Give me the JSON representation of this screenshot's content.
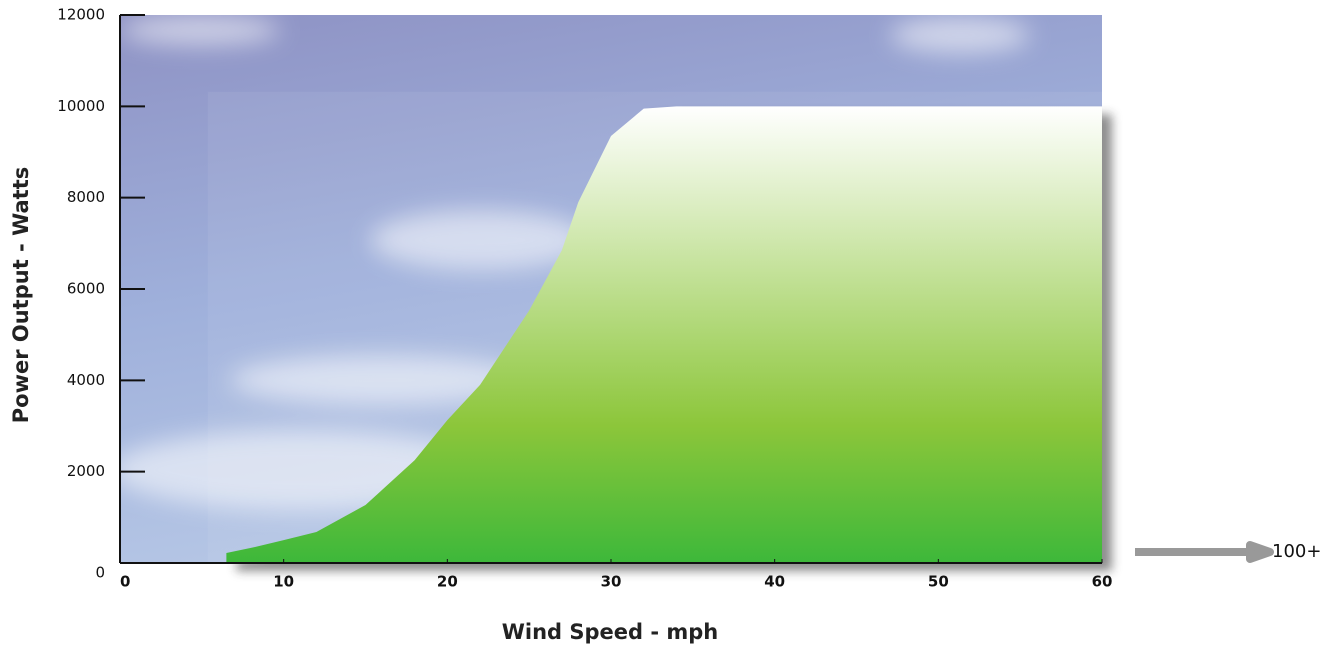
{
  "chart_data": {
    "type": "area",
    "x_label": "Wind Speed - mph",
    "y_label": "Power Output - Watts",
    "annotation": "100+",
    "x": [
      6.5,
      8,
      10,
      12,
      15,
      18,
      20,
      22,
      25,
      27,
      28,
      30,
      32,
      34,
      40,
      50,
      60
    ],
    "values": [
      220,
      330,
      500,
      680,
      1270,
      2250,
      3130,
      3900,
      5530,
      6850,
      7900,
      9350,
      9950,
      10000,
      10000,
      10000,
      10000
    ],
    "color": "#3db83a",
    "xlim": [
      0,
      60
    ],
    "xticks": [
      0,
      10,
      20,
      30,
      40,
      50,
      60
    ],
    "ylim": [
      0,
      12000
    ],
    "yticks": [
      0,
      2000,
      4000,
      6000,
      8000,
      10000,
      12000
    ]
  }
}
